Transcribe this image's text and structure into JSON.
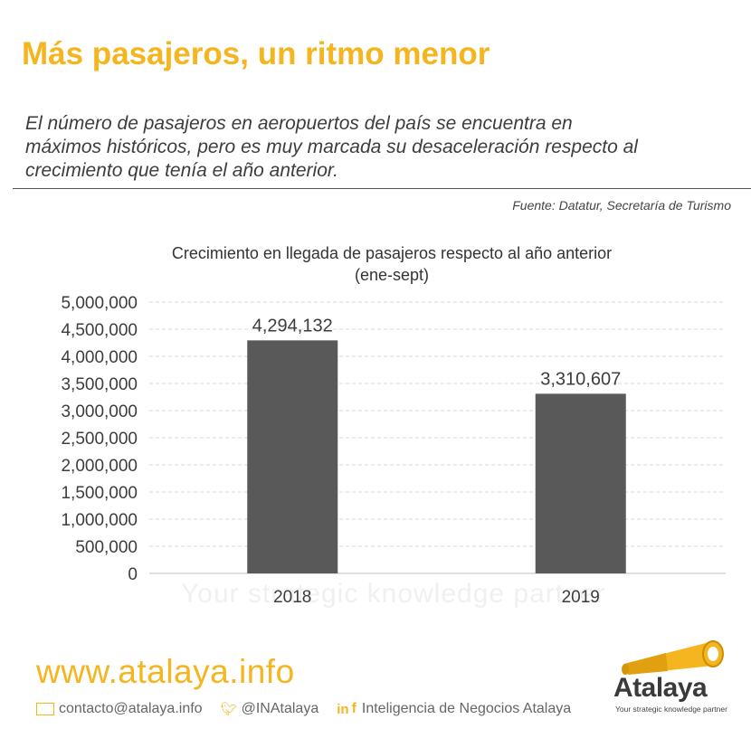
{
  "header": {
    "title": "Más pasajeros, un ritmo menor",
    "subtitle_lines": [
      "El número de pasajeros en aeropuertos del país se encuentra en",
      "máximos históricos, pero es muy marcada su desaceleración respecto al",
      "crecimiento que tenía el año anterior."
    ],
    "source": "Fuente: Datatur, Secretaría de Turismo"
  },
  "chart_data": {
    "type": "bar",
    "title_lines": [
      "Crecimiento en llegada de pasajeros respecto al año anterior",
      "(ene-sept)"
    ],
    "categories": [
      "2018",
      "2019"
    ],
    "values": [
      4294132,
      3310607
    ],
    "data_labels": [
      "4,294,132",
      "3,310,607"
    ],
    "ylim": [
      0,
      5000000
    ],
    "yticks": [
      "0",
      "500,000",
      "1,000,000",
      "1,500,000",
      "2,000,000",
      "2,500,000",
      "3,000,000",
      "3,500,000",
      "4,000,000",
      "4,500,000",
      "5,000,000"
    ],
    "grid": true,
    "bar_color": "#595959"
  },
  "watermark": {
    "tagline": "Your strategic knowledge partner"
  },
  "footer": {
    "website": "www.atalaya.info",
    "email": "contacto@atalaya.info",
    "twitter": "@INAtalaya",
    "linkedin_facebook": "Inteligencia de Negocios Atalaya",
    "icons": [
      "email-icon",
      "twitter-icon",
      "linkedin-icon",
      "facebook-icon"
    ]
  },
  "logo": {
    "name": "Atalaya",
    "tagline": "Your strategic knowledge partner",
    "icon": "telescope-icon"
  },
  "colors": {
    "accent": "#f5b51f",
    "bar": "#595959",
    "text": "#3d3d3d"
  }
}
